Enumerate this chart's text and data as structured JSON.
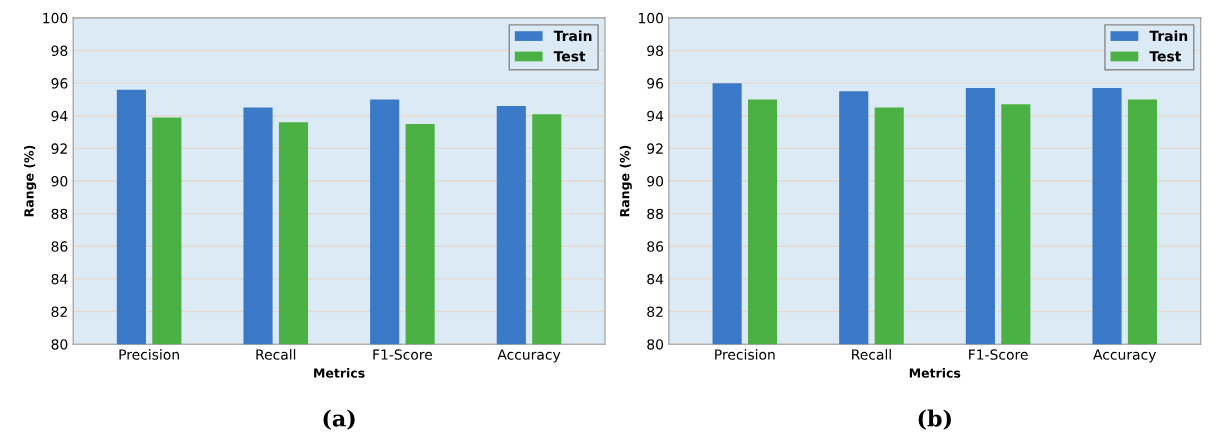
{
  "chart_data": [
    {
      "type": "bar",
      "title": "(a)",
      "xlabel": "Metrics",
      "ylabel": "Range (%)",
      "categories": [
        "Precision",
        "Recall",
        "F1-Score",
        "Accuracy"
      ],
      "series": [
        {
          "name": "Train",
          "color": "#3a78c8",
          "values": [
            95.6,
            94.5,
            95.0,
            94.6
          ]
        },
        {
          "name": "Test",
          "color": "#4cb145",
          "values": [
            93.9,
            93.6,
            93.5,
            94.1
          ]
        }
      ],
      "ylim": [
        80,
        100
      ],
      "yticks": [
        80,
        82,
        84,
        86,
        88,
        90,
        92,
        94,
        96,
        98,
        100
      ],
      "grid": "y",
      "legend": "top right"
    },
    {
      "type": "bar",
      "title": "(b)",
      "xlabel": "Metrics",
      "ylabel": "Range (%)",
      "categories": [
        "Precision",
        "Recall",
        "F1-Score",
        "Accuracy"
      ],
      "series": [
        {
          "name": "Train",
          "color": "#3a78c8",
          "values": [
            96.0,
            95.5,
            95.7,
            95.7
          ]
        },
        {
          "name": "Test",
          "color": "#4cb145",
          "values": [
            95.0,
            94.5,
            94.7,
            95.0
          ]
        }
      ],
      "ylim": [
        80,
        100
      ],
      "yticks": [
        80,
        82,
        84,
        86,
        88,
        90,
        92,
        94,
        96,
        98,
        100
      ],
      "grid": "y",
      "legend": "top right"
    }
  ]
}
